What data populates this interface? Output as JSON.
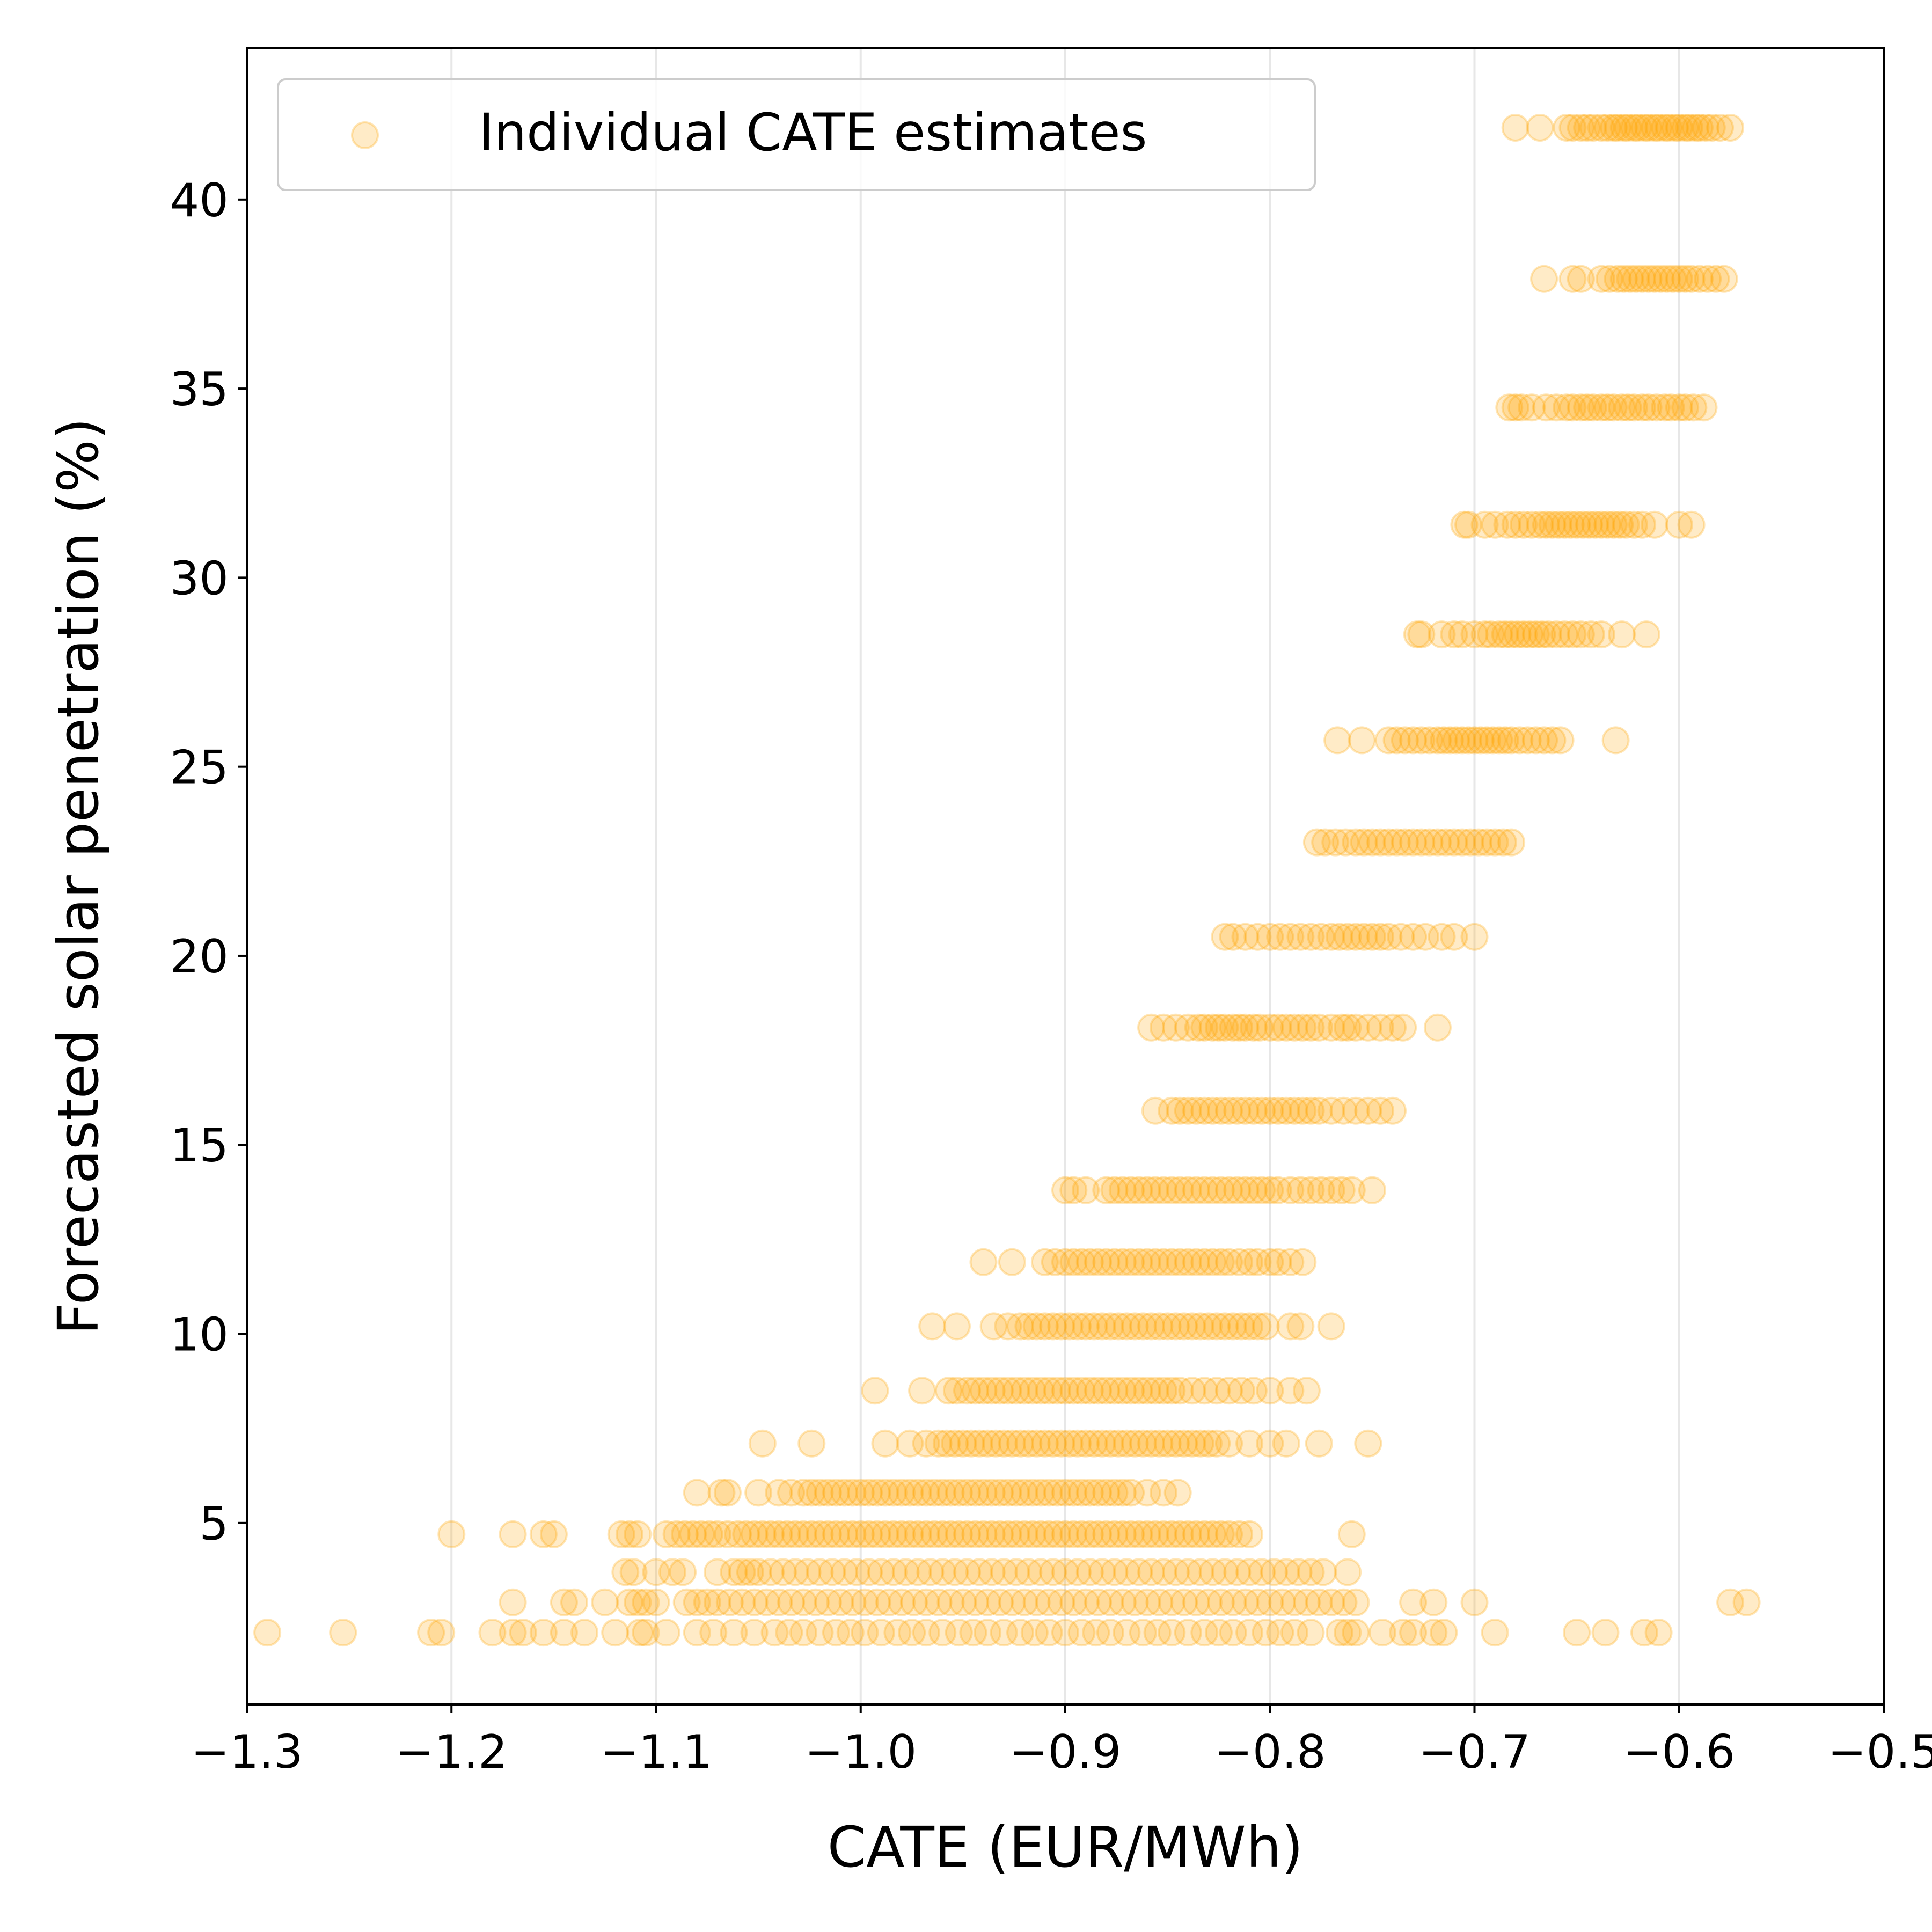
{
  "chart_data": {
    "type": "scatter",
    "xlabel": "CATE (EUR/MWh)",
    "ylabel": "Forecasted solar penetration (%)",
    "xlim": [
      -1.3,
      -0.5
    ],
    "ylim": [
      0.2,
      44.0
    ],
    "x_ticks": [
      -1.3,
      -1.2,
      -1.1,
      -1.0,
      -0.9,
      -0.8,
      -0.7,
      -0.6,
      -0.5
    ],
    "x_tick_labels": [
      "−1.3",
      "−1.2",
      "−1.1",
      "−1.0",
      "−0.9",
      "−0.8",
      "−0.7",
      "−0.6",
      "−0.5"
    ],
    "y_ticks": [
      5,
      10,
      15,
      20,
      25,
      30,
      35,
      40
    ],
    "y_tick_labels": [
      "5",
      "10",
      "15",
      "20",
      "25",
      "30",
      "35",
      "40"
    ],
    "grid": "vertical",
    "legend_position": "upper-left",
    "marker_color": "#ffa500",
    "marker_alpha": 0.22,
    "series": [
      {
        "name": "Individual CATE estimates",
        "groups": [
          {
            "y": 41.9,
            "x": [
              -0.68,
              -0.668,
              -0.655,
              -0.652,
              -0.648,
              -0.645,
              -0.642,
              -0.638,
              -0.635,
              -0.632,
              -0.63,
              -0.627,
              -0.625,
              -0.622,
              -0.62,
              -0.617,
              -0.615,
              -0.612,
              -0.61,
              -0.607,
              -0.605,
              -0.602,
              -0.6,
              -0.597,
              -0.595,
              -0.592,
              -0.59,
              -0.587,
              -0.584,
              -0.58,
              -0.575
            ]
          },
          {
            "y": 37.9,
            "x": [
              -0.666,
              -0.652,
              -0.648,
              -0.638,
              -0.634,
              -0.63,
              -0.627,
              -0.624,
              -0.621,
              -0.618,
              -0.615,
              -0.612,
              -0.609,
              -0.606,
              -0.603,
              -0.6,
              -0.597,
              -0.594,
              -0.59,
              -0.586,
              -0.582,
              -0.578
            ]
          },
          {
            "y": 34.5,
            "x": [
              -0.683,
              -0.68,
              -0.677,
              -0.672,
              -0.665,
              -0.66,
              -0.655,
              -0.652,
              -0.648,
              -0.645,
              -0.642,
              -0.638,
              -0.635,
              -0.632,
              -0.628,
              -0.625,
              -0.622,
              -0.618,
              -0.615,
              -0.611,
              -0.607,
              -0.604,
              -0.6,
              -0.597,
              -0.593,
              -0.588
            ]
          },
          {
            "y": 31.4,
            "x": [
              -0.705,
              -0.703,
              -0.695,
              -0.69,
              -0.684,
              -0.68,
              -0.676,
              -0.672,
              -0.668,
              -0.665,
              -0.662,
              -0.659,
              -0.656,
              -0.653,
              -0.65,
              -0.647,
              -0.644,
              -0.641,
              -0.638,
              -0.635,
              -0.632,
              -0.629,
              -0.626,
              -0.622,
              -0.618,
              -0.612,
              -0.6,
              -0.594
            ]
          },
          {
            "y": 28.5,
            "x": [
              -0.728,
              -0.726,
              -0.716,
              -0.71,
              -0.706,
              -0.7,
              -0.695,
              -0.692,
              -0.688,
              -0.685,
              -0.682,
              -0.679,
              -0.676,
              -0.673,
              -0.67,
              -0.667,
              -0.664,
              -0.66,
              -0.656,
              -0.652,
              -0.648,
              -0.643,
              -0.638,
              -0.628,
              -0.616
            ]
          },
          {
            "y": 25.7,
            "x": [
              -0.767,
              -0.755,
              -0.742,
              -0.738,
              -0.734,
              -0.73,
              -0.726,
              -0.722,
              -0.718,
              -0.715,
              -0.712,
              -0.709,
              -0.706,
              -0.703,
              -0.7,
              -0.697,
              -0.694,
              -0.691,
              -0.688,
              -0.685,
              -0.682,
              -0.678,
              -0.674,
              -0.67,
              -0.666,
              -0.662,
              -0.658,
              -0.631
            ]
          },
          {
            "y": 23.0,
            "x": [
              -0.777,
              -0.773,
              -0.768,
              -0.763,
              -0.758,
              -0.754,
              -0.75,
              -0.746,
              -0.742,
              -0.738,
              -0.734,
              -0.73,
              -0.726,
              -0.722,
              -0.718,
              -0.714,
              -0.71,
              -0.706,
              -0.702,
              -0.698,
              -0.694,
              -0.69,
              -0.686,
              -0.682
            ]
          },
          {
            "y": 20.5,
            "x": [
              -0.822,
              -0.818,
              -0.812,
              -0.806,
              -0.8,
              -0.795,
              -0.79,
              -0.785,
              -0.78,
              -0.775,
              -0.77,
              -0.766,
              -0.762,
              -0.758,
              -0.754,
              -0.75,
              -0.746,
              -0.742,
              -0.736,
              -0.73,
              -0.724,
              -0.716,
              -0.71,
              -0.7
            ]
          },
          {
            "y": 18.1,
            "x": [
              -0.858,
              -0.852,
              -0.846,
              -0.84,
              -0.835,
              -0.832,
              -0.828,
              -0.825,
              -0.822,
              -0.818,
              -0.815,
              -0.812,
              -0.808,
              -0.805,
              -0.8,
              -0.796,
              -0.792,
              -0.788,
              -0.784,
              -0.78,
              -0.776,
              -0.77,
              -0.765,
              -0.762,
              -0.758,
              -0.752,
              -0.746,
              -0.74,
              -0.735,
              -0.718
            ]
          },
          {
            "y": 15.9,
            "x": [
              -0.856,
              -0.848,
              -0.844,
              -0.84,
              -0.836,
              -0.832,
              -0.828,
              -0.824,
              -0.82,
              -0.816,
              -0.812,
              -0.808,
              -0.804,
              -0.8,
              -0.796,
              -0.792,
              -0.788,
              -0.784,
              -0.78,
              -0.776,
              -0.77,
              -0.764,
              -0.758,
              -0.752,
              -0.746,
              -0.74
            ]
          },
          {
            "y": 13.8,
            "x": [
              -0.9,
              -0.896,
              -0.89,
              -0.88,
              -0.876,
              -0.872,
              -0.868,
              -0.864,
              -0.86,
              -0.856,
              -0.852,
              -0.848,
              -0.844,
              -0.84,
              -0.836,
              -0.832,
              -0.828,
              -0.824,
              -0.82,
              -0.816,
              -0.812,
              -0.808,
              -0.804,
              -0.8,
              -0.796,
              -0.79,
              -0.785,
              -0.78,
              -0.775,
              -0.77,
              -0.765,
              -0.76,
              -0.75
            ]
          },
          {
            "y": 11.9,
            "x": [
              -0.94,
              -0.926,
              -0.91,
              -0.905,
              -0.9,
              -0.896,
              -0.892,
              -0.888,
              -0.884,
              -0.88,
              -0.876,
              -0.872,
              -0.868,
              -0.864,
              -0.86,
              -0.856,
              -0.852,
              -0.848,
              -0.844,
              -0.84,
              -0.836,
              -0.832,
              -0.828,
              -0.824,
              -0.82,
              -0.815,
              -0.81,
              -0.806,
              -0.8,
              -0.796,
              -0.79,
              -0.784
            ]
          },
          {
            "y": 10.2,
            "x": [
              -0.965,
              -0.953,
              -0.935,
              -0.928,
              -0.922,
              -0.918,
              -0.914,
              -0.91,
              -0.906,
              -0.902,
              -0.898,
              -0.894,
              -0.89,
              -0.886,
              -0.882,
              -0.878,
              -0.874,
              -0.87,
              -0.866,
              -0.862,
              -0.858,
              -0.854,
              -0.85,
              -0.846,
              -0.842,
              -0.838,
              -0.834,
              -0.83,
              -0.826,
              -0.822,
              -0.818,
              -0.814,
              -0.81,
              -0.806,
              -0.802,
              -0.79,
              -0.785,
              -0.77
            ]
          },
          {
            "y": 8.5,
            "x": [
              -0.993,
              -0.97,
              -0.957,
              -0.953,
              -0.948,
              -0.944,
              -0.94,
              -0.936,
              -0.932,
              -0.928,
              -0.924,
              -0.92,
              -0.916,
              -0.912,
              -0.908,
              -0.904,
              -0.9,
              -0.896,
              -0.892,
              -0.888,
              -0.884,
              -0.88,
              -0.876,
              -0.872,
              -0.868,
              -0.864,
              -0.86,
              -0.856,
              -0.852,
              -0.848,
              -0.844,
              -0.838,
              -0.832,
              -0.826,
              -0.82,
              -0.814,
              -0.808,
              -0.8,
              -0.79,
              -0.782
            ]
          },
          {
            "y": 7.1,
            "x": [
              -1.048,
              -1.024,
              -0.988,
              -0.976,
              -0.968,
              -0.962,
              -0.958,
              -0.954,
              -0.95,
              -0.946,
              -0.942,
              -0.938,
              -0.934,
              -0.93,
              -0.926,
              -0.922,
              -0.918,
              -0.914,
              -0.91,
              -0.906,
              -0.902,
              -0.898,
              -0.894,
              -0.89,
              -0.886,
              -0.882,
              -0.878,
              -0.874,
              -0.87,
              -0.866,
              -0.862,
              -0.858,
              -0.854,
              -0.85,
              -0.846,
              -0.842,
              -0.838,
              -0.834,
              -0.83,
              -0.826,
              -0.82,
              -0.81,
              -0.8,
              -0.792,
              -0.776,
              -0.752
            ]
          },
          {
            "y": 5.8,
            "x": [
              -1.08,
              -1.068,
              -1.065,
              -1.05,
              -1.04,
              -1.034,
              -1.028,
              -1.024,
              -1.02,
              -1.016,
              -1.012,
              -1.008,
              -1.004,
              -1.0,
              -0.996,
              -0.992,
              -0.988,
              -0.984,
              -0.98,
              -0.976,
              -0.972,
              -0.968,
              -0.964,
              -0.96,
              -0.956,
              -0.952,
              -0.948,
              -0.944,
              -0.94,
              -0.936,
              -0.932,
              -0.928,
              -0.924,
              -0.92,
              -0.916,
              -0.912,
              -0.908,
              -0.904,
              -0.9,
              -0.896,
              -0.892,
              -0.888,
              -0.884,
              -0.88,
              -0.876,
              -0.872,
              -0.868,
              -0.86,
              -0.852,
              -0.845
            ]
          },
          {
            "y": 4.7,
            "x": [
              -1.2,
              -1.17,
              -1.155,
              -1.15,
              -1.117,
              -1.113,
              -1.109,
              -1.095,
              -1.09,
              -1.086,
              -1.082,
              -1.078,
              -1.074,
              -1.07,
              -1.065,
              -1.06,
              -1.056,
              -1.052,
              -1.048,
              -1.044,
              -1.04,
              -1.036,
              -1.032,
              -1.028,
              -1.024,
              -1.02,
              -1.016,
              -1.012,
              -1.008,
              -1.004,
              -1.0,
              -0.996,
              -0.992,
              -0.988,
              -0.984,
              -0.98,
              -0.976,
              -0.972,
              -0.968,
              -0.964,
              -0.96,
              -0.956,
              -0.952,
              -0.948,
              -0.944,
              -0.94,
              -0.936,
              -0.932,
              -0.928,
              -0.924,
              -0.92,
              -0.916,
              -0.912,
              -0.908,
              -0.904,
              -0.9,
              -0.896,
              -0.892,
              -0.888,
              -0.884,
              -0.88,
              -0.876,
              -0.872,
              -0.868,
              -0.864,
              -0.86,
              -0.856,
              -0.852,
              -0.848,
              -0.844,
              -0.84,
              -0.836,
              -0.832,
              -0.828,
              -0.824,
              -0.82,
              -0.815,
              -0.81,
              -0.76
            ]
          },
          {
            "y": 3.7,
            "x": [
              -1.115,
              -1.111,
              -1.1,
              -1.092,
              -1.087,
              -1.07,
              -1.062,
              -1.058,
              -1.054,
              -1.05,
              -1.044,
              -1.038,
              -1.032,
              -1.026,
              -1.02,
              -1.014,
              -1.008,
              -1.002,
              -0.996,
              -0.99,
              -0.984,
              -0.978,
              -0.972,
              -0.966,
              -0.96,
              -0.954,
              -0.948,
              -0.942,
              -0.936,
              -0.93,
              -0.924,
              -0.918,
              -0.912,
              -0.906,
              -0.9,
              -0.894,
              -0.888,
              -0.882,
              -0.876,
              -0.87,
              -0.864,
              -0.858,
              -0.852,
              -0.846,
              -0.84,
              -0.834,
              -0.828,
              -0.822,
              -0.816,
              -0.81,
              -0.804,
              -0.798,
              -0.792,
              -0.786,
              -0.78,
              -0.774,
              -0.762
            ]
          },
          {
            "y": 2.9,
            "x": [
              -1.17,
              -1.145,
              -1.14,
              -1.125,
              -1.113,
              -1.109,
              -1.105,
              -1.1,
              -1.085,
              -1.08,
              -1.075,
              -1.07,
              -1.064,
              -1.058,
              -1.052,
              -1.046,
              -1.04,
              -1.034,
              -1.028,
              -1.022,
              -1.016,
              -1.01,
              -1.004,
              -0.998,
              -0.992,
              -0.986,
              -0.98,
              -0.974,
              -0.968,
              -0.962,
              -0.956,
              -0.95,
              -0.944,
              -0.938,
              -0.932,
              -0.926,
              -0.92,
              -0.914,
              -0.908,
              -0.902,
              -0.896,
              -0.89,
              -0.884,
              -0.878,
              -0.872,
              -0.866,
              -0.86,
              -0.854,
              -0.848,
              -0.842,
              -0.836,
              -0.83,
              -0.824,
              -0.818,
              -0.812,
              -0.806,
              -0.8,
              -0.794,
              -0.788,
              -0.782,
              -0.776,
              -0.77,
              -0.764,
              -0.758,
              -0.73,
              -0.72,
              -0.7,
              -0.575,
              -0.567
            ]
          },
          {
            "y": 2.1,
            "x": [
              -1.29,
              -1.253,
              -1.21,
              -1.205,
              -1.18,
              -1.17,
              -1.165,
              -1.155,
              -1.145,
              -1.135,
              -1.12,
              -1.108,
              -1.105,
              -1.095,
              -1.08,
              -1.072,
              -1.062,
              -1.052,
              -1.042,
              -1.035,
              -1.028,
              -1.02,
              -1.012,
              -1.005,
              -0.998,
              -0.99,
              -0.982,
              -0.975,
              -0.968,
              -0.96,
              -0.952,
              -0.945,
              -0.938,
              -0.93,
              -0.922,
              -0.915,
              -0.908,
              -0.9,
              -0.892,
              -0.885,
              -0.878,
              -0.87,
              -0.862,
              -0.855,
              -0.848,
              -0.84,
              -0.832,
              -0.825,
              -0.818,
              -0.81,
              -0.802,
              -0.795,
              -0.788,
              -0.78,
              -0.766,
              -0.762,
              -0.758,
              -0.745,
              -0.735,
              -0.73,
              -0.72,
              -0.715,
              -0.69,
              -0.65,
              -0.636,
              -0.617,
              -0.61
            ]
          }
        ]
      }
    ]
  }
}
